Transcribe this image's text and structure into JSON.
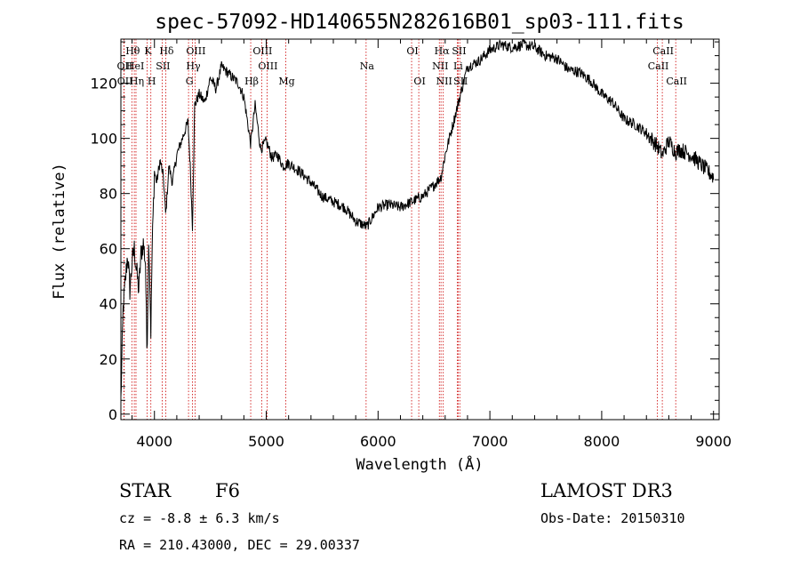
{
  "chart_data": {
    "type": "line",
    "title": "spec-57092-HD140655N282616B01_sp03-111.fits",
    "xlabel": "Wavelength (Å)",
    "ylabel": "Flux (relative)",
    "xlim": [
      3700,
      9050
    ],
    "ylim": [
      -2,
      136
    ],
    "x_ticks": [
      4000,
      5000,
      6000,
      7000,
      8000,
      9000
    ],
    "y_ticks": [
      0,
      20,
      40,
      60,
      80,
      100,
      120
    ],
    "grid": false,
    "series": [
      {
        "x": [
          3700,
          3720,
          3740,
          3760,
          3780,
          3800,
          3820,
          3840,
          3860,
          3880,
          3900,
          3920,
          3933,
          3950,
          3968,
          3980,
          4000,
          4020,
          4050,
          4080,
          4101,
          4130,
          4160,
          4200,
          4250,
          4300,
          4320,
          4340,
          4360,
          4400,
          4450,
          4500,
          4550,
          4600,
          4650,
          4700,
          4750,
          4800,
          4861,
          4900,
          4950,
          5000,
          5050,
          5100,
          5150,
          5200,
          5300,
          5400,
          5500,
          5600,
          5700,
          5800,
          5900,
          6000,
          6100,
          6200,
          6300,
          6400,
          6500,
          6563,
          6600,
          6650,
          6700,
          6800,
          6900,
          7000,
          7100,
          7200,
          7300,
          7400,
          7500,
          7600,
          7700,
          7800,
          7900,
          8000,
          8100,
          8200,
          8300,
          8400,
          8500,
          8542,
          8600,
          8662,
          8700,
          8800,
          8900,
          9000
        ],
        "y": [
          5,
          38,
          48,
          58,
          45,
          55,
          60,
          52,
          45,
          58,
          62,
          55,
          22,
          65,
          30,
          60,
          88,
          84,
          92,
          86,
          72,
          90,
          84,
          94,
          100,
          106,
          90,
          68,
          112,
          116,
          113,
          122,
          118,
          126,
          124,
          122,
          120,
          115,
          98,
          112,
          96,
          99,
          93,
          94,
          90,
          91,
          88,
          84,
          79,
          77,
          75,
          70,
          68,
          75,
          76,
          75,
          77,
          79,
          83,
          86,
          94,
          102,
          110,
          126,
          128,
          132,
          134,
          133,
          134,
          133,
          130,
          129,
          125,
          124,
          121,
          116,
          113,
          107,
          105,
          102,
          97,
          94,
          99,
          95,
          96,
          94,
          90,
          86
        ]
      }
    ],
    "lines": [
      {
        "label": "Hθ",
        "x": 3798,
        "row": 1
      },
      {
        "label": "OII",
        "x": 3727,
        "row": 2
      },
      {
        "label": "OII",
        "x": 3729,
        "row": 3
      },
      {
        "label": "HeI",
        "x": 3820,
        "row": 2
      },
      {
        "label": "Hη",
        "x": 3835,
        "row": 3
      },
      {
        "label": "K",
        "x": 3934,
        "row": 1
      },
      {
        "label": "SII",
        "x": 4069,
        "row": 2
      },
      {
        "label": "H",
        "x": 3968,
        "row": 3
      },
      {
        "label": "Hδ",
        "x": 4101,
        "row": 1
      },
      {
        "label": "OIII",
        "x": 4363,
        "row": 1
      },
      {
        "label": "Hγ",
        "x": 4340,
        "row": 2
      },
      {
        "label": "G",
        "x": 4305,
        "row": 3
      },
      {
        "label": "OIII",
        "x": 4959,
        "row": 1
      },
      {
        "label": "OIII",
        "x": 5007,
        "row": 2
      },
      {
        "label": "Hβ",
        "x": 4861,
        "row": 3
      },
      {
        "label": "Mg",
        "x": 5175,
        "row": 3
      },
      {
        "label": "Na",
        "x": 5893,
        "row": 2
      },
      {
        "label": "OI",
        "x": 6300,
        "row": 1
      },
      {
        "label": "OI",
        "x": 6364,
        "row": 3
      },
      {
        "label": "Hα",
        "x": 6563,
        "row": 1
      },
      {
        "label": "NII",
        "x": 6548,
        "row": 2
      },
      {
        "label": "NII",
        "x": 6583,
        "row": 3
      },
      {
        "label": "SII",
        "x": 6717,
        "row": 1
      },
      {
        "label": "Li",
        "x": 6708,
        "row": 2
      },
      {
        "label": "SII",
        "x": 6731,
        "row": 3
      },
      {
        "label": "CaII",
        "x": 8542,
        "row": 1
      },
      {
        "label": "CaII",
        "x": 8498,
        "row": 2
      },
      {
        "label": "CaII",
        "x": 8662,
        "row": 3
      }
    ]
  },
  "info": {
    "object_class": "STAR",
    "subclass": "F6",
    "survey": "LAMOST DR3",
    "cz": "cz = -8.8 ± 6.3 km/s",
    "obs_date": "Obs-Date: 20150310",
    "radec": "RA = 210.43000, DEC =  29.00337"
  },
  "colors": {
    "spectrum": "#000000",
    "line_markers": "#cc0000"
  }
}
